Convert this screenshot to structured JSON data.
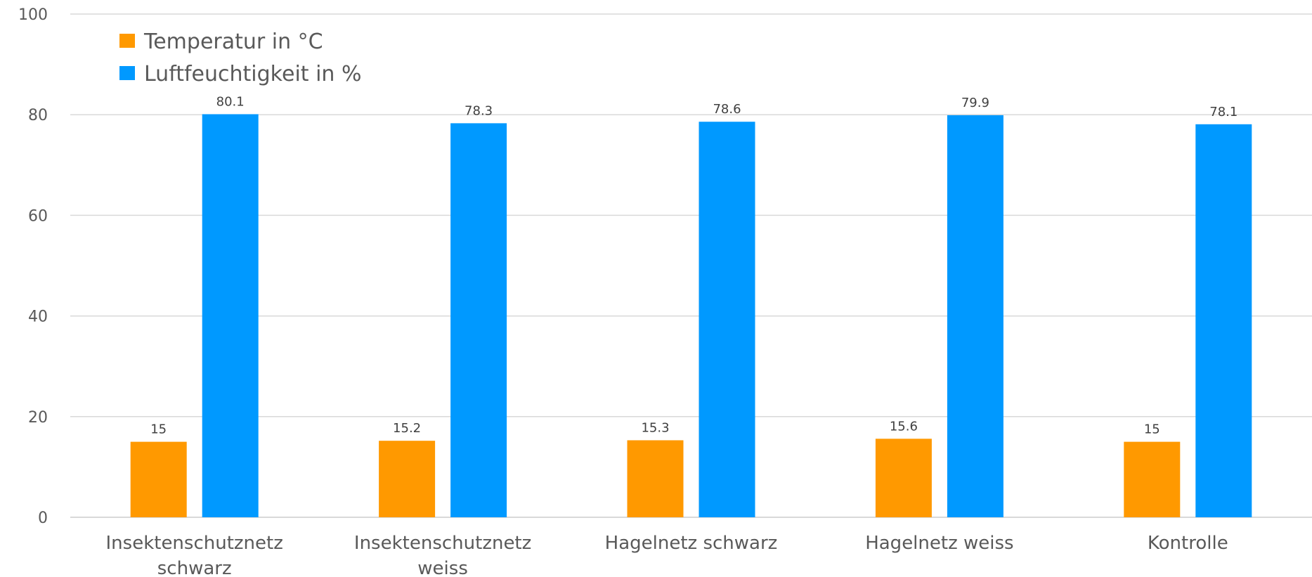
{
  "chart_data": {
    "type": "bar",
    "title": "",
    "xlabel": "",
    "ylabel": "",
    "ylim": [
      0,
      100
    ],
    "yticks": [
      0,
      20,
      40,
      60,
      80,
      100
    ],
    "grid": true,
    "legend_position": "top-left",
    "categories": [
      [
        "Insektenschutznetz",
        "schwarz"
      ],
      [
        "Insektenschutznetz",
        "weiss"
      ],
      [
        "Hagelnetz schwarz"
      ],
      [
        "Hagelnetz weiss"
      ],
      [
        "Kontrolle"
      ]
    ],
    "series": [
      {
        "name": "Temperatur in °C",
        "color": "#ff9900",
        "values": [
          15,
          15.2,
          15.3,
          15.6,
          15
        ]
      },
      {
        "name": "Luftfeuchtigkeit in %",
        "color": "#0099ff",
        "values": [
          80.1,
          78.3,
          78.6,
          79.9,
          78.1
        ]
      }
    ]
  }
}
